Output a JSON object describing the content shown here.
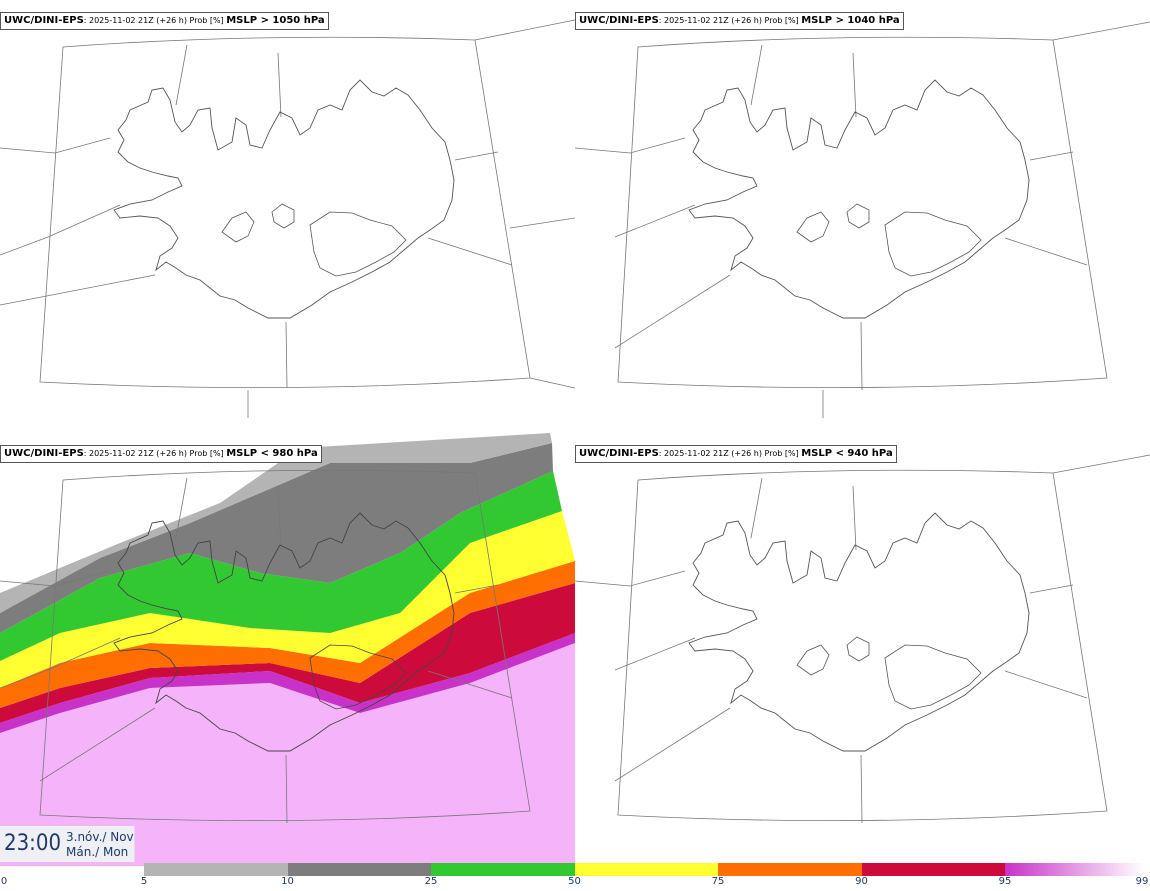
{
  "panels": [
    {
      "source": "UWC/DINI-EPS",
      "run": ": 2025-11-02 21Z (+26 h) Prob [%] ",
      "variable": "MSLP > 1050 hPa"
    },
    {
      "source": "UWC/DINI-EPS",
      "run": ": 2025-11-02 21Z (+26 h) Prob [%] ",
      "variable": "MSLP > 1040 hPa"
    },
    {
      "source": "UWC/DINI-EPS",
      "run": ": 2025-11-02 21Z (+26 h) Prob [%] ",
      "variable": "MSLP < 980 hPa"
    },
    {
      "source": "UWC/DINI-EPS",
      "run": ": 2025-11-02 21Z (+26 h) Prob [%] ",
      "variable": "MSLP < 940 hPa"
    }
  ],
  "time": {
    "hour": "23:00",
    "date_line1": "3.nóv./ Nov",
    "date_line2": "Mán./ Mon"
  },
  "legend": {
    "ticks": [
      "0",
      "5",
      "10",
      "25",
      "50",
      "75",
      "90",
      "95",
      "99"
    ],
    "colors": [
      "#ffffff",
      "#b4b4b4",
      "#7d7d7d",
      "#32c832",
      "#ffff32",
      "#ff6e00",
      "#cd0a3c",
      "#c832c8",
      "#f5b4fa"
    ]
  }
}
